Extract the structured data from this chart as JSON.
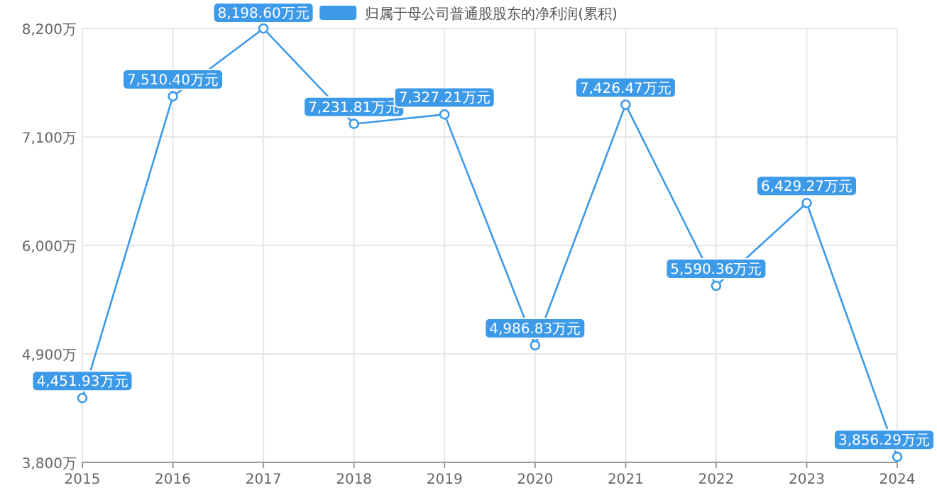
{
  "chart_data": {
    "type": "line",
    "categories": [
      "2015",
      "2016",
      "2017",
      "2018",
      "2019",
      "2020",
      "2021",
      "2022",
      "2023",
      "2024"
    ],
    "series": [
      {
        "name": "归属于母公司普通股股东的净利润(累积)",
        "color": "#3d9ae8",
        "values": [
          4451.93,
          7510.4,
          8198.6,
          7231.81,
          7327.21,
          4986.83,
          7426.47,
          5590.36,
          6429.27,
          3856.29
        ],
        "value_labels": [
          "4,451.93万元",
          "7,510.40万元",
          "8,198.60万元",
          "7,231.81万元",
          "7,327.21万元",
          "4,986.83万元",
          "7,426.47万元",
          "5,590.36万元",
          "6,429.27万元",
          "3,856.29万元"
        ]
      }
    ],
    "ylim": [
      3800,
      8200
    ],
    "yticks": [
      {
        "value": 3800,
        "label": "3,800万"
      },
      {
        "value": 4900,
        "label": "4,900万"
      },
      {
        "value": 6000,
        "label": "6,000万"
      },
      {
        "value": 7100,
        "label": "7,100万"
      },
      {
        "value": 8200,
        "label": "8,200万"
      }
    ],
    "grid": true,
    "legend": "top",
    "marker": "circle",
    "line_style": "solid"
  }
}
